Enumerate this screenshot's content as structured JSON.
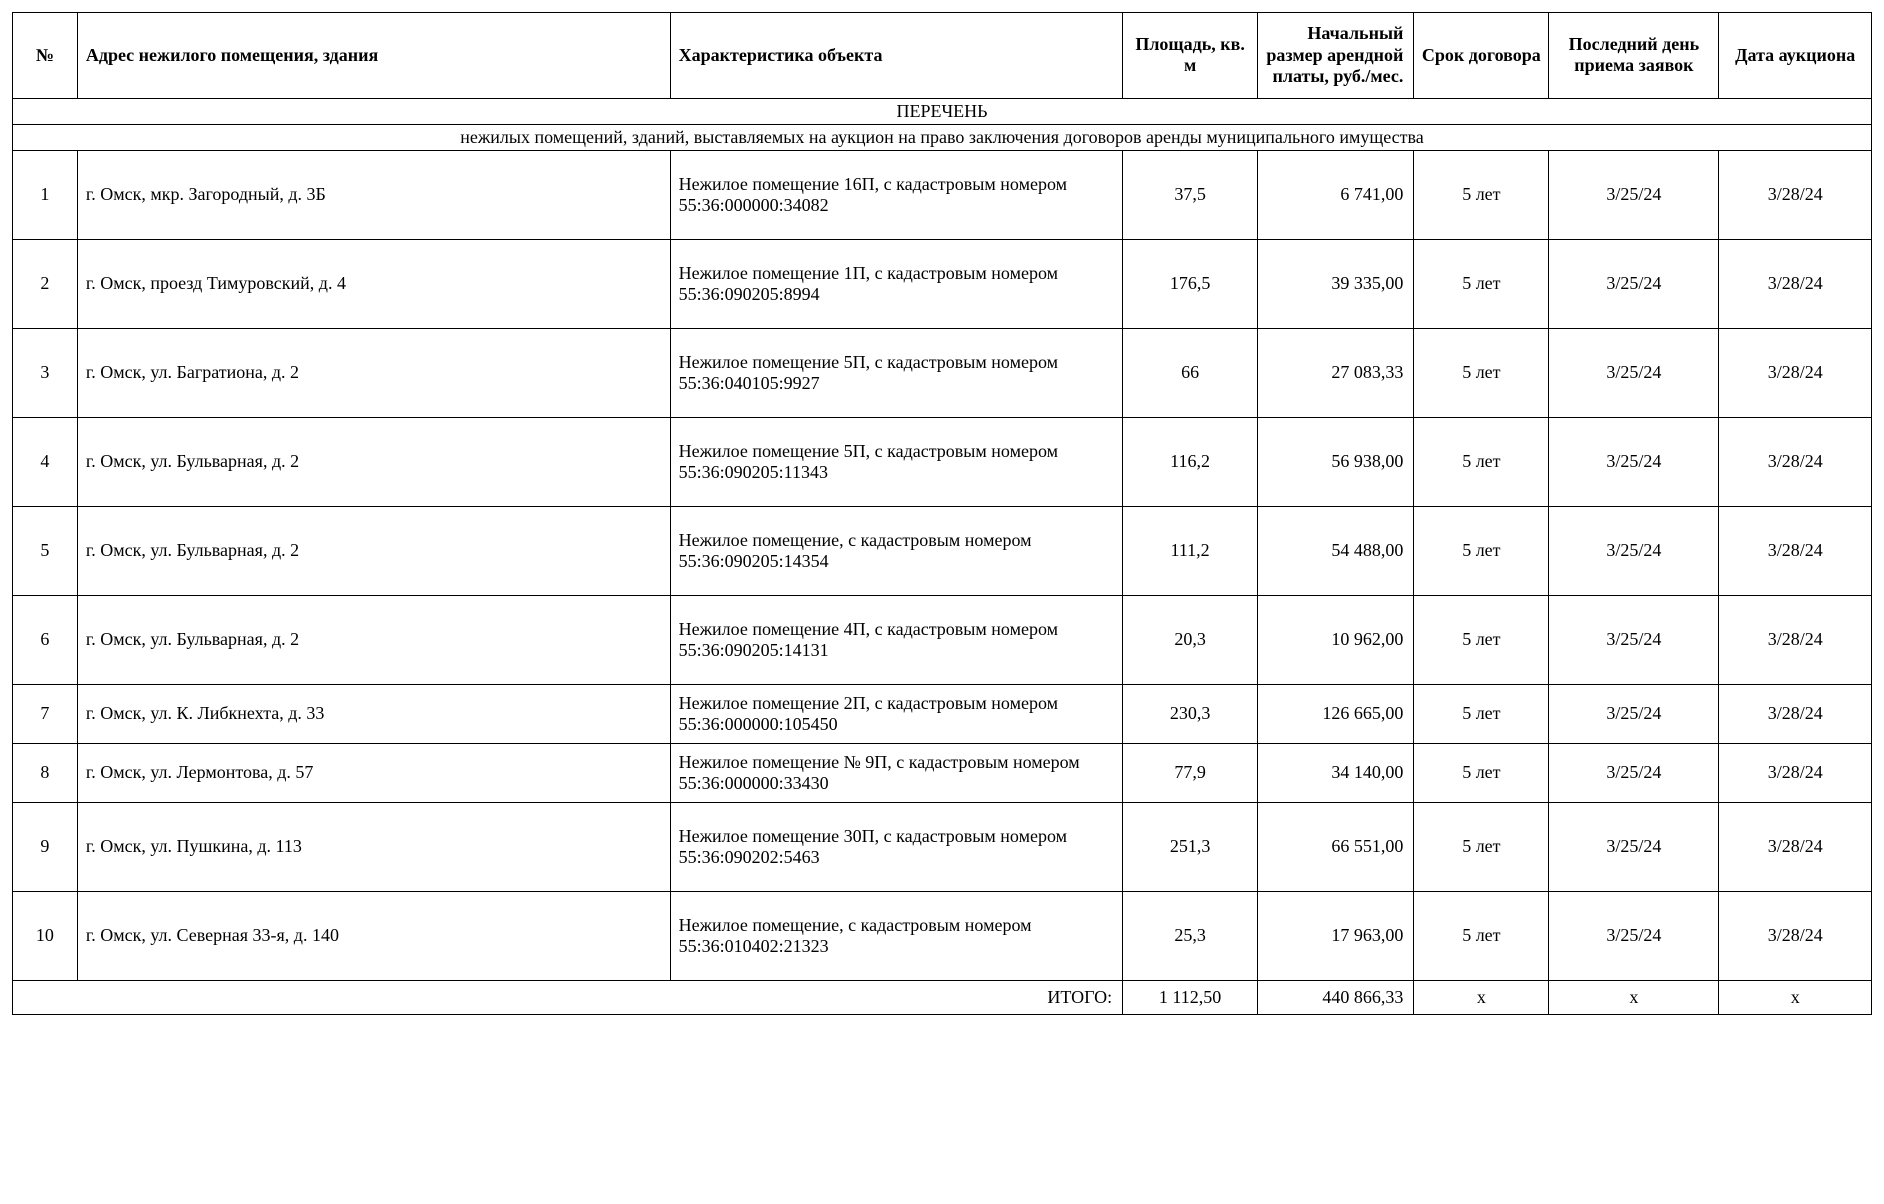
{
  "title": "ПЕРЕЧЕНЬ",
  "subtitle": "нежилых помещений, зданий, выставляемых на аукцион на право заключения договоров аренды муниципального имущества",
  "columns": [
    "№",
    "Адрес нежилого помещения, здания",
    "Характеристика объекта",
    "Площадь, кв. м",
    "Начальный размер арендной платы, руб./мес.",
    "Срок договора",
    "Последний день приема заявок",
    "Дата аукциона"
  ],
  "rows": [
    {
      "num": "1",
      "addr": "г. Омск, мкр. Загородный, д. 3Б",
      "char": "Нежилое помещение 16П, с кадастровым номером 55:36:000000:34082",
      "area": "37,5",
      "rent": "6 741,00",
      "term": "5 лет",
      "deadline": "3/25/24",
      "auction": "3/28/24",
      "tall": true
    },
    {
      "num": "2",
      "addr": "г. Омск, проезд Тимуровский, д. 4",
      "char": "Нежилое помещение 1П, с кадастровым номером 55:36:090205:8994",
      "area": "176,5",
      "rent": "39 335,00",
      "term": "5 лет",
      "deadline": "3/25/24",
      "auction": "3/28/24",
      "tall": true
    },
    {
      "num": "3",
      "addr": "г. Омск, ул. Багратиона, д. 2",
      "char": "Нежилое помещение 5П, с кадастровым номером 55:36:040105:9927",
      "area": "66",
      "rent": "27 083,33",
      "term": "5 лет",
      "deadline": "3/25/24",
      "auction": "3/28/24",
      "tall": true
    },
    {
      "num": "4",
      "addr": "г. Омск, ул. Бульварная, д. 2",
      "char": "Нежилое помещение 5П, с кадастровым номером 55:36:090205:11343",
      "area": "116,2",
      "rent": "56 938,00",
      "term": "5 лет",
      "deadline": "3/25/24",
      "auction": "3/28/24",
      "tall": true
    },
    {
      "num": "5",
      "addr": "г. Омск, ул. Бульварная, д. 2",
      "char": "Нежилое помещение, с кадастровым номером 55:36:090205:14354",
      "area": "111,2",
      "rent": "54 488,00",
      "term": "5 лет",
      "deadline": "3/25/24",
      "auction": "3/28/24",
      "tall": true
    },
    {
      "num": "6",
      "addr": "г. Омск, ул. Бульварная, д. 2",
      "char": "Нежилое помещение 4П, с кадастровым номером 55:36:090205:14131",
      "area": "20,3",
      "rent": "10 962,00",
      "term": "5 лет",
      "deadline": "3/25/24",
      "auction": "3/28/24",
      "tall": true
    },
    {
      "num": "7",
      "addr": "г. Омск, ул. К. Либкнехта, д. 33",
      "char": "Нежилое помещение 2П, с кадастровым номером 55:36:000000:105450",
      "area": "230,3",
      "rent": "126 665,00",
      "term": "5 лет",
      "deadline": "3/25/24",
      "auction": "3/28/24",
      "tall": false
    },
    {
      "num": "8",
      "addr": "г. Омск, ул. Лермонтова, д. 57",
      "char": "Нежилое помещение № 9П, с кадастровым номером 55:36:000000:33430",
      "area": "77,9",
      "rent": "34 140,00",
      "term": "5 лет",
      "deadline": "3/25/24",
      "auction": "3/28/24",
      "tall": false
    },
    {
      "num": "9",
      "addr": "г. Омск, ул. Пушкина, д. 113",
      "char": "Нежилое помещение 30П, с кадастровым номером 55:36:090202:5463",
      "area": "251,3",
      "rent": "66 551,00",
      "term": "5 лет",
      "deadline": "3/25/24",
      "auction": "3/28/24",
      "tall": true
    },
    {
      "num": "10",
      "addr": "г. Омск, ул. Северная 33-я, д. 140",
      "char": "Нежилое помещение,  с кадастровым номером 55:36:010402:21323",
      "area": "25,3",
      "rent": "17 963,00",
      "term": "5 лет",
      "deadline": "3/25/24",
      "auction": "3/28/24",
      "tall": true
    }
  ],
  "totals": {
    "label": "ИТОГО:",
    "area": "1 112,50",
    "rent": "440 866,33",
    "term": "x",
    "deadline": "x",
    "auction": "x"
  }
}
